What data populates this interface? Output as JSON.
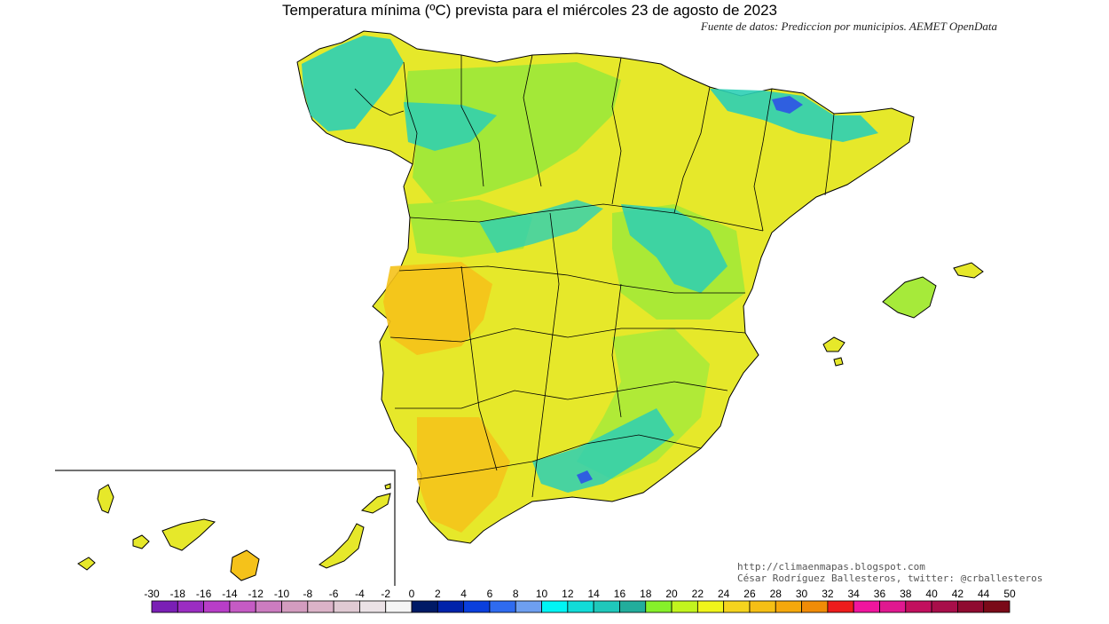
{
  "title": "Temperatura mínima (ºC) prevista para el miércoles 23 de agosto de 2023",
  "subtitle": "Fuente de datos: Prediccion por municipios. AEMET OpenData",
  "credit_url": "http://climaenmapas.blogspot.com",
  "credit_author": "César Rodríguez Ballesteros, twitter: @crballesteros",
  "legend": {
    "labels": [
      "-30",
      "-18",
      "-16",
      "-14",
      "-12",
      "-10",
      "-8",
      "-6",
      "-4",
      "-2",
      "0",
      "2",
      "4",
      "6",
      "8",
      "10",
      "12",
      "14",
      "16",
      "18",
      "20",
      "22",
      "24",
      "26",
      "28",
      "30",
      "32",
      "34",
      "36",
      "38",
      "40",
      "42",
      "44",
      "50"
    ],
    "colors": [
      "#7a1fb5",
      "#9b2dc2",
      "#b83ec8",
      "#c55bc4",
      "#cc7cc0",
      "#d39cbf",
      "#dbb3c8",
      "#e0cad3",
      "#ebe2e6",
      "#f5f5f5",
      "#001a66",
      "#0022aa",
      "#0a3fdd",
      "#2f6bef",
      "#6e9ff0",
      "#00f5f5",
      "#12dcd8",
      "#1fc8bb",
      "#22ad9c",
      "#86f02a",
      "#c2f51e",
      "#f0f51a",
      "#f5d41e",
      "#f5bf15",
      "#f5a80c",
      "#f08c07",
      "#ee1c1c",
      "#f0159e",
      "#e01890",
      "#c2105e",
      "#a80e4a",
      "#8f0a30",
      "#7a0a18"
    ]
  }
}
